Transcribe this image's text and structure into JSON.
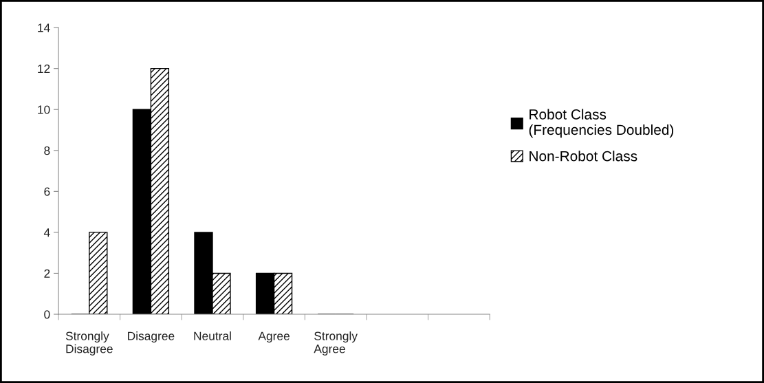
{
  "chart_data": {
    "type": "bar",
    "categories": [
      "Strongly\nDisagree",
      "Disagree",
      "Neutral",
      "Agree",
      "Strongly\nAgree",
      null,
      null
    ],
    "series": [
      {
        "name": "Robot Class\n(Frequencies Doubled)",
        "color": "#000000",
        "values": [
          0,
          10,
          4,
          2,
          0,
          null,
          null
        ]
      },
      {
        "name": "Non-Robot Class",
        "color": "#000000",
        "values": [
          4,
          12,
          2,
          2,
          0,
          null,
          null
        ]
      }
    ],
    "ylim": [
      0,
      14
    ],
    "yticks": [
      0,
      2,
      4,
      6,
      8,
      10,
      12,
      14
    ],
    "grid": false,
    "legend": "right"
  }
}
